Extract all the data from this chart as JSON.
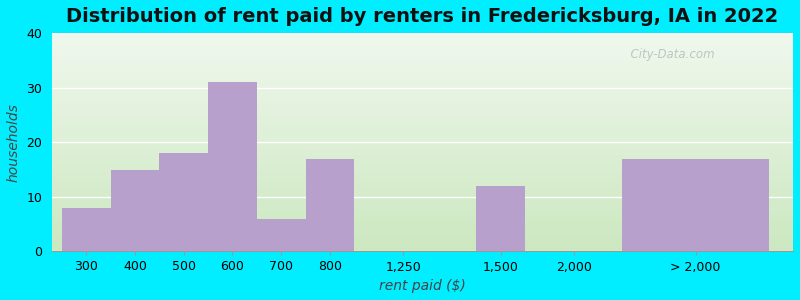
{
  "title": "Distribution of rent paid by renters in Fredericksburg, IA in 2022",
  "xlabel": "rent paid ($)",
  "ylabel": "households",
  "categories": [
    "300",
    "400",
    "500",
    "600",
    "700",
    "800",
    "1,250",
    "1,500",
    "2,000",
    "> 2,000"
  ],
  "values": [
    8,
    15,
    18,
    31,
    6,
    17,
    0,
    12,
    0,
    17
  ],
  "bar_color": "#b8a0cc",
  "background_outer": "#00eeff",
  "ylim": [
    0,
    40
  ],
  "yticks": [
    0,
    10,
    20,
    30,
    40
  ],
  "title_fontsize": 14,
  "axis_label_fontsize": 10,
  "tick_fontsize": 9,
  "watermark": "  City-Data.com"
}
